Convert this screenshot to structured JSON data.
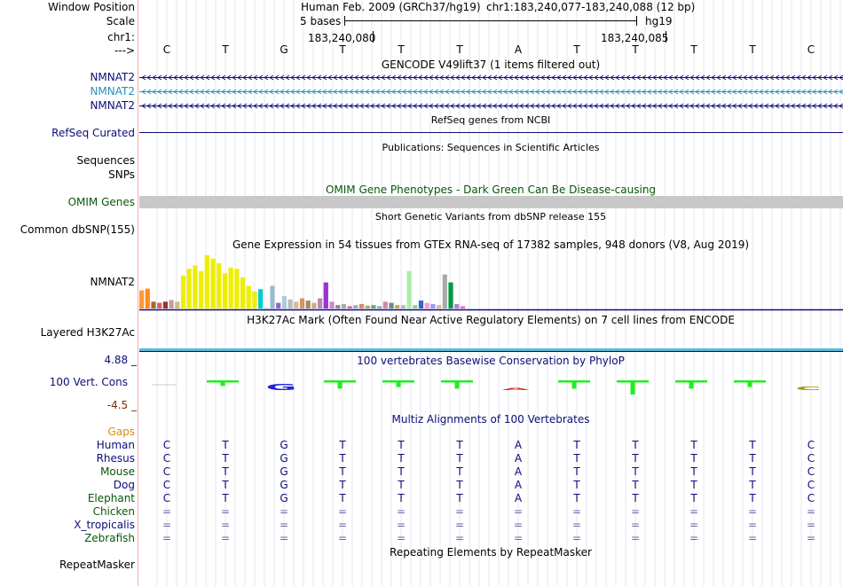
{
  "header": {
    "window_position_label": "Window Position",
    "assembly": "Human Feb. 2009 (GRCh37/hg19)",
    "position": "chr1:183,240,077-183,240,088 (12 bp)",
    "scale_label": "Scale",
    "scale_text": "5 bases",
    "scale_db": "hg19",
    "chrom_label": "chr1:",
    "coord_left": "183,240,080",
    "coord_right": "183,240,085",
    "strand_label": "--->"
  },
  "sequence": [
    "C",
    "T",
    "G",
    "T",
    "T",
    "T",
    "A",
    "T",
    "T",
    "T",
    "T",
    "C"
  ],
  "tracks": {
    "gencode_title": "GENCODE V49lift37 (1 items filtered out)",
    "gencode_rows": [
      {
        "label": "NMNAT2",
        "color": "#0c0c78"
      },
      {
        "label": "NMNAT2",
        "color": "#2c8fb8"
      },
      {
        "label": "NMNAT2",
        "color": "#0c0c78"
      }
    ],
    "refseq_title": "RefSeq genes from NCBI",
    "refseq_label": "RefSeq Curated",
    "pubs_title": "Publications: Sequences in Scientific Articles",
    "pubs_label1": "Sequences",
    "pubs_label2": "SNPs",
    "omim_title": "OMIM Gene Phenotypes - Dark Green Can Be Disease-causing",
    "omim_label": "OMIM Genes",
    "dbsnp_title": "Short Genetic Variants from dbSNP release 155",
    "dbsnp_label": "Common dbSNP(155)",
    "gtex_title": "Gene Expression in 54 tissues from GTEx RNA-seq of 17382 samples, 948 donors (V8, Aug 2019)",
    "gtex_label": "NMNAT2",
    "h3k_title": "H3K27Ac Mark (Often Found Near Active Regulatory Elements) on 7 cell lines from ENCODE",
    "h3k_label": "Layered H3K27Ac",
    "cons_title": "100 vertebrates Basewise Conservation by PhyloP",
    "cons_label": "100 Vert. Cons",
    "cons_max": "4.88 _",
    "cons_min": "-4.5 _",
    "multiz_title": "Multiz Alignments of 100 Vertebrates",
    "gaps_label": "Gaps",
    "repeat_title": "Repeating Elements by RepeatMasker",
    "repeat_label": "RepeatMasker"
  },
  "gtex_bars": [
    {
      "value": 0.32,
      "color": "#ff9933"
    },
    {
      "value": 0.35,
      "color": "#ff8c1a"
    },
    {
      "value": 0.12,
      "color": "#aa6633"
    },
    {
      "value": 0.1,
      "color": "#cc6666"
    },
    {
      "value": 0.12,
      "color": "#993333"
    },
    {
      "value": 0.15,
      "color": "#cc9999"
    },
    {
      "value": 0.12,
      "color": "#ccbb88"
    },
    {
      "value": 0.58,
      "color": "#eeee00"
    },
    {
      "value": 0.7,
      "color": "#eeee00"
    },
    {
      "value": 0.76,
      "color": "#eeee00"
    },
    {
      "value": 0.66,
      "color": "#eeee00"
    },
    {
      "value": 0.94,
      "color": "#eeee00"
    },
    {
      "value": 0.88,
      "color": "#eeee00"
    },
    {
      "value": 0.8,
      "color": "#eeee00"
    },
    {
      "value": 0.62,
      "color": "#eeee00"
    },
    {
      "value": 0.72,
      "color": "#eeee00"
    },
    {
      "value": 0.7,
      "color": "#eeee00"
    },
    {
      "value": 0.55,
      "color": "#eeee00"
    },
    {
      "value": 0.4,
      "color": "#eeee00"
    },
    {
      "value": 0.3,
      "color": "#eeee00"
    },
    {
      "value": 0.34,
      "color": "#00cccc"
    },
    {
      "value": 0.0,
      "color": "#cccccc"
    },
    {
      "value": 0.4,
      "color": "#99bbcc"
    },
    {
      "value": 0.1,
      "color": "#9966cc"
    },
    {
      "value": 0.22,
      "color": "#aaccdd"
    },
    {
      "value": 0.16,
      "color": "#bbbbbb"
    },
    {
      "value": 0.12,
      "color": "#ddbb99"
    },
    {
      "value": 0.18,
      "color": "#cc9966"
    },
    {
      "value": 0.14,
      "color": "#aa8866"
    },
    {
      "value": 0.1,
      "color": "#ccaa88"
    },
    {
      "value": 0.18,
      "color": "#bb88bb"
    },
    {
      "value": 0.46,
      "color": "#9933cc"
    },
    {
      "value": 0.12,
      "color": "#cc88cc"
    },
    {
      "value": 0.06,
      "color": "#888888"
    },
    {
      "value": 0.08,
      "color": "#aaaaaa"
    },
    {
      "value": 0.04,
      "color": "#cc6699"
    },
    {
      "value": 0.06,
      "color": "#99aacc"
    },
    {
      "value": 0.08,
      "color": "#dd8866"
    },
    {
      "value": 0.05,
      "color": "#aaaa66"
    },
    {
      "value": 0.06,
      "color": "#66aa66"
    },
    {
      "value": 0.04,
      "color": "#9999cc"
    },
    {
      "value": 0.12,
      "color": "#cc88aa"
    },
    {
      "value": 0.1,
      "color": "#668899"
    },
    {
      "value": 0.06,
      "color": "#ccaa44"
    },
    {
      "value": 0.06,
      "color": "#bbbbbb"
    },
    {
      "value": 0.66,
      "color": "#aaeeaa"
    },
    {
      "value": 0.06,
      "color": "#99cc99"
    },
    {
      "value": 0.14,
      "color": "#3366cc"
    },
    {
      "value": 0.1,
      "color": "#ff99cc"
    },
    {
      "value": 0.08,
      "color": "#9999ff"
    },
    {
      "value": 0.06,
      "color": "#ccbb99"
    },
    {
      "value": 0.6,
      "color": "#aaaaaa"
    },
    {
      "value": 0.46,
      "color": "#009944"
    },
    {
      "value": 0.08,
      "color": "#aa88cc"
    },
    {
      "value": 0.04,
      "color": "#ee66cc"
    }
  ],
  "conservation": [
    {
      "base": "C",
      "score": -0.15,
      "glyph": false
    },
    {
      "base": "T",
      "score": 0.2,
      "glyph": false
    },
    {
      "base": "G",
      "score": 1.0,
      "glyph": true
    },
    {
      "base": "T",
      "score": 0.45,
      "glyph": false
    },
    {
      "base": "T",
      "score": 0.3,
      "glyph": false
    },
    {
      "base": "T",
      "score": 0.45,
      "glyph": false
    },
    {
      "base": "A",
      "score": -0.1,
      "glyph": true
    },
    {
      "base": "T",
      "score": 0.45,
      "glyph": false
    },
    {
      "base": "T",
      "score": 1.0,
      "glyph": false
    },
    {
      "base": "T",
      "score": 0.45,
      "glyph": false
    },
    {
      "base": "T",
      "score": 0.3,
      "glyph": false
    },
    {
      "base": "C",
      "score": 0.6,
      "glyph": true
    }
  ],
  "species": [
    {
      "name": "Human",
      "color": "#0c0c78",
      "bases": [
        "C",
        "T",
        "G",
        "T",
        "T",
        "T",
        "A",
        "T",
        "T",
        "T",
        "T",
        "C"
      ]
    },
    {
      "name": "Rhesus",
      "color": "#0c0c78",
      "bases": [
        "C",
        "T",
        "G",
        "T",
        "T",
        "T",
        "A",
        "T",
        "T",
        "T",
        "T",
        "C"
      ]
    },
    {
      "name": "Mouse",
      "color": "#085808",
      "bases": [
        "C",
        "T",
        "G",
        "T",
        "T",
        "T",
        "A",
        "T",
        "T",
        "T",
        "T",
        "C"
      ]
    },
    {
      "name": "Dog",
      "color": "#0c0c78",
      "bases": [
        "C",
        "T",
        "G",
        "T",
        "T",
        "T",
        "A",
        "T",
        "T",
        "T",
        "T",
        "C"
      ]
    },
    {
      "name": "Elephant",
      "color": "#085808",
      "bases": [
        "C",
        "T",
        "G",
        "T",
        "T",
        "T",
        "A",
        "T",
        "T",
        "T",
        "T",
        "C"
      ]
    },
    {
      "name": "Chicken",
      "color": "#085808",
      "bases": [
        "=",
        "=",
        "=",
        "=",
        "=",
        "=",
        "=",
        "=",
        "=",
        "=",
        "=",
        "="
      ]
    },
    {
      "name": "X_tropicalis",
      "color": "#0c0c78",
      "bases": [
        "=",
        "=",
        "=",
        "=",
        "=",
        "=",
        "=",
        "=",
        "=",
        "=",
        "=",
        "="
      ]
    },
    {
      "name": "Zebrafish",
      "color": "#085808",
      "bases": [
        "=",
        "=",
        "=",
        "=",
        "=",
        "=",
        "=",
        "=",
        "=",
        "=",
        "=",
        "="
      ]
    }
  ],
  "colors": {
    "navy": "#0c0c78",
    "omim_bar": "#c8c8c8",
    "h3k_bar": "#59b8d8",
    "gaps": "#e08c10",
    "cons_pos": "#22ee22",
    "cons_neg": "#ee2222"
  }
}
